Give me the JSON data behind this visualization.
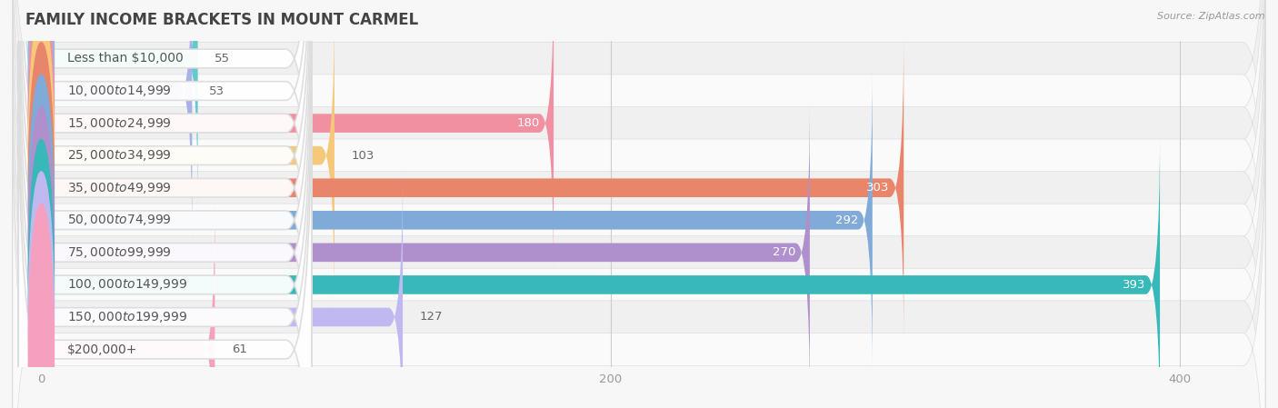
{
  "title": "FAMILY INCOME BRACKETS IN MOUNT CARMEL",
  "source": "Source: ZipAtlas.com",
  "categories": [
    "Less than $10,000",
    "$10,000 to $14,999",
    "$15,000 to $24,999",
    "$25,000 to $34,999",
    "$35,000 to $49,999",
    "$50,000 to $74,999",
    "$75,000 to $99,999",
    "$100,000 to $149,999",
    "$150,000 to $199,999",
    "$200,000+"
  ],
  "values": [
    55,
    53,
    180,
    103,
    303,
    292,
    270,
    393,
    127,
    61
  ],
  "bar_colors": [
    "#62caca",
    "#a8b0e8",
    "#f090a0",
    "#f5c87a",
    "#e8856a",
    "#80aad8",
    "#b090cc",
    "#38b8b8",
    "#c0b8f0",
    "#f5a0be"
  ],
  "xlim": [
    -10,
    430
  ],
  "xticks": [
    0,
    200,
    400
  ],
  "background_color": "#f7f7f7",
  "row_bg_even": "#f0f0f0",
  "row_bg_odd": "#fafafa",
  "title_fontsize": 12,
  "label_fontsize": 10,
  "value_fontsize": 9.5,
  "value_threshold": 150
}
